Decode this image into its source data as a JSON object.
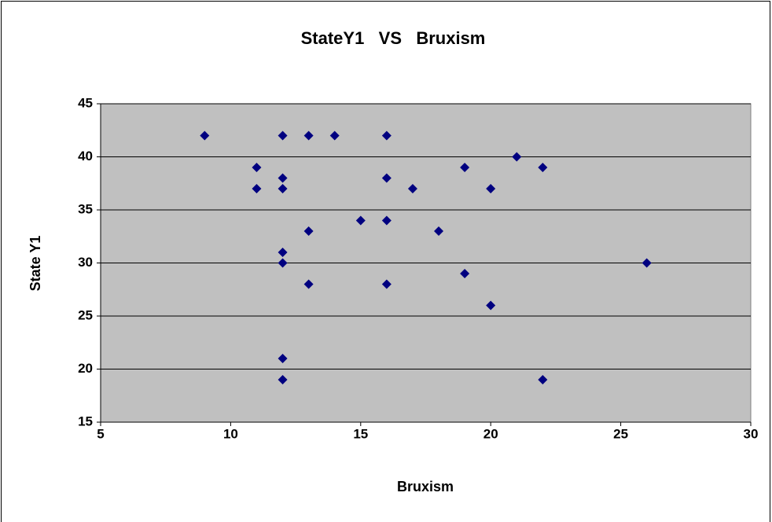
{
  "chart_data": {
    "type": "scatter",
    "title": "StateY1   VS   Bruxism",
    "x_label": "Bruxism",
    "y_label": "State Y1",
    "series": [
      {
        "name": "State Y1",
        "color": "#000080",
        "x": [
          9,
          11,
          11,
          12,
          12,
          12,
          12,
          12,
          12,
          12,
          13,
          13,
          13,
          14,
          15,
          16,
          16,
          16,
          16,
          17,
          18,
          19,
          19,
          20,
          20,
          21,
          22,
          22,
          26
        ],
        "values": [
          42,
          39,
          37,
          42,
          38,
          37,
          31,
          30,
          21,
          19,
          42,
          33,
          28,
          42,
          34,
          42,
          38,
          34,
          28,
          37,
          33,
          39,
          29,
          37,
          26,
          40,
          39,
          19,
          30
        ]
      }
    ],
    "xlim": [
      5,
      30
    ],
    "xticks": [
      5,
      10,
      15,
      20,
      25,
      30
    ],
    "ylim": [
      15,
      45
    ],
    "yticks": [
      15,
      20,
      25,
      30,
      35,
      40,
      45
    ],
    "grid": true,
    "plot_background": "#c0c0c0"
  }
}
